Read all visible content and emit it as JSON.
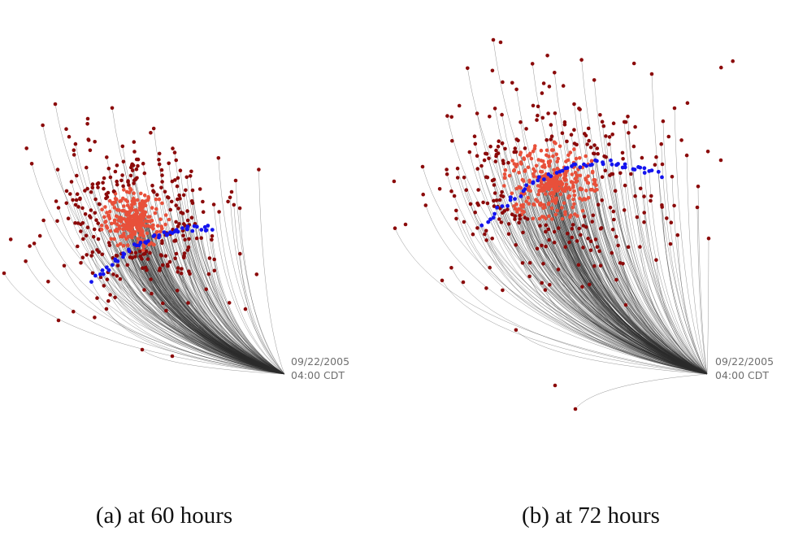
{
  "panels": [
    {
      "caption": "(a) at 60 hours",
      "timestamp_date": "09/22/2005",
      "timestamp_time": "04:00 CDT"
    },
    {
      "caption": "(b) at 72 hours",
      "timestamp_date": "09/22/2005",
      "timestamp_time": "04:00 CDT"
    }
  ],
  "colors": {
    "path": "#2a2a2a",
    "outer_ensemble": "#8b0a0a",
    "inner_ensemble": "#e8503a",
    "median_track": "#1414ee",
    "timestamp_text": "#6f6f6f"
  }
}
